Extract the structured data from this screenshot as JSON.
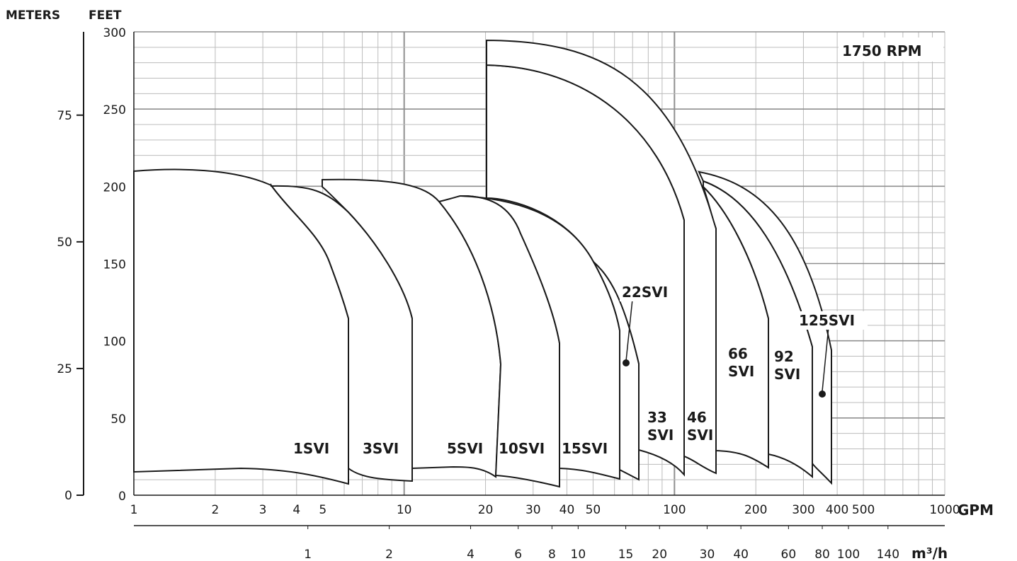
{
  "chart_data": {
    "type": "line",
    "title": "",
    "annotation": "1750 RPM",
    "ylabel_left": "METERS",
    "ylabel_right": "FEET",
    "xlabel": "GPM",
    "x2label": "m³/h",
    "x_scale": "log",
    "xlim": [
      1,
      1000
    ],
    "ylim_feet": [
      0,
      300
    ],
    "ylim_meters": [
      0,
      91.4
    ],
    "grid": true,
    "feet_ticks": [
      "0",
      "50",
      "100",
      "150",
      "200",
      "250",
      "300"
    ],
    "meter_ticks": [
      "0",
      "25",
      "50",
      "75"
    ],
    "gpm_ticks": [
      "1",
      "2",
      "3",
      "4",
      "5",
      "10",
      "20",
      "30",
      "40",
      "50",
      "100",
      "200",
      "300",
      "400",
      "500",
      "1000"
    ],
    "m3h_ticks": [
      "1",
      "2",
      "4",
      "6",
      "8",
      "10",
      "15",
      "20",
      "30",
      "40",
      "60",
      "80",
      "100",
      "140"
    ],
    "series": [
      {
        "name": "1SVI",
        "label": "1SVI",
        "flow_gpm": [
          1,
          6.2
        ],
        "head_max_ft": [
          211,
          114
        ],
        "head_min_ft": [
          13,
          7
        ]
      },
      {
        "name": "3SVI",
        "label": "3SVI",
        "flow_gpm": [
          3.2,
          11.5
        ],
        "head_max_ft": [
          201,
          114
        ],
        "head_min_ft": [
          17,
          10
        ]
      },
      {
        "name": "5SVI",
        "label": "5SVI",
        "flow_gpm": [
          5,
          22
        ],
        "head_max_ft": [
          206,
          84
        ],
        "head_min_ft": [
          25,
          13
        ]
      },
      {
        "name": "10SVI",
        "label": "10SVI",
        "flow_gpm": [
          15,
          41
        ],
        "head_max_ft": [
          195,
          99
        ],
        "head_min_ft": [
          16,
          5
        ]
      },
      {
        "name": "15SVI",
        "label": "15SVI",
        "flow_gpm": [
          35,
          64
        ],
        "head_max_ft": [
          150,
          106
        ],
        "head_min_ft": [
          17,
          10
        ]
      },
      {
        "name": "22SVI",
        "label": "22SVI",
        "flow_gpm": [
          51,
          72
        ],
        "head_max_ft": [
          150,
          85
        ],
        "head_min_ft": [
          15,
          9
        ]
      },
      {
        "name": "33SVI",
        "label": "33\nSVI",
        "flow_gpm": [
          23,
          105
        ],
        "head_max_ft": [
          279,
          176
        ],
        "head_min_ft": [
          29,
          13
        ]
      },
      {
        "name": "46SVI",
        "label": "46\nSVI",
        "flow_gpm": [
          23,
          138
        ],
        "head_max_ft": [
          296,
          173
        ],
        "head_min_ft": [
          25,
          14
        ]
      },
      {
        "name": "66SVI",
        "label": "66\nSVI",
        "flow_gpm": [
          113,
          217
        ],
        "head_max_ft": [
          196,
          114
        ],
        "head_min_ft": [
          28,
          17
        ]
      },
      {
        "name": "92SVI",
        "label": "92\nSVI",
        "flow_gpm": [
          125,
          320
        ],
        "head_max_ft": [
          210,
          96
        ],
        "head_min_ft": [
          25,
          13
        ]
      },
      {
        "name": "125SVI",
        "label": "125SVI",
        "flow_gpm": [
          110,
          380
        ],
        "head_max_ft": [
          211,
          92
        ],
        "head_min_ft": [
          21,
          7
        ]
      }
    ]
  },
  "colors": {
    "line": "#1a1a1a",
    "grid_major": "#8f8f8f",
    "grid_minor": "#bcbcbc",
    "background": "#ffffff"
  }
}
